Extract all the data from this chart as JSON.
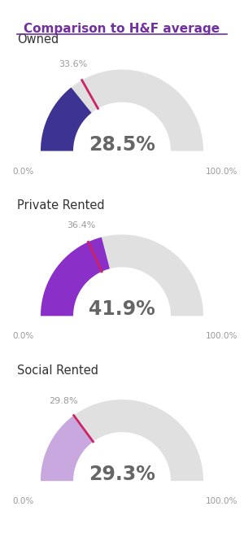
{
  "title": "Comparison to H&F average",
  "categories": [
    "Owned",
    "Private Rented",
    "Social Rented"
  ],
  "ward_values": [
    28.5,
    41.9,
    29.3
  ],
  "hf_values": [
    33.6,
    36.4,
    29.8
  ],
  "ward_colors": [
    "#3d3393",
    "#8b2fc9",
    "#c9a8e0"
  ],
  "hf_marker_color": "#cc2266",
  "bg_color": "#ffffff",
  "gauge_bg_color": "#e0e0e0",
  "title_color": "#7030a0",
  "axis_label_color": "#999999",
  "value_text_color": "#666666",
  "category_text_color": "#333333",
  "border_color": "#9b59b6"
}
